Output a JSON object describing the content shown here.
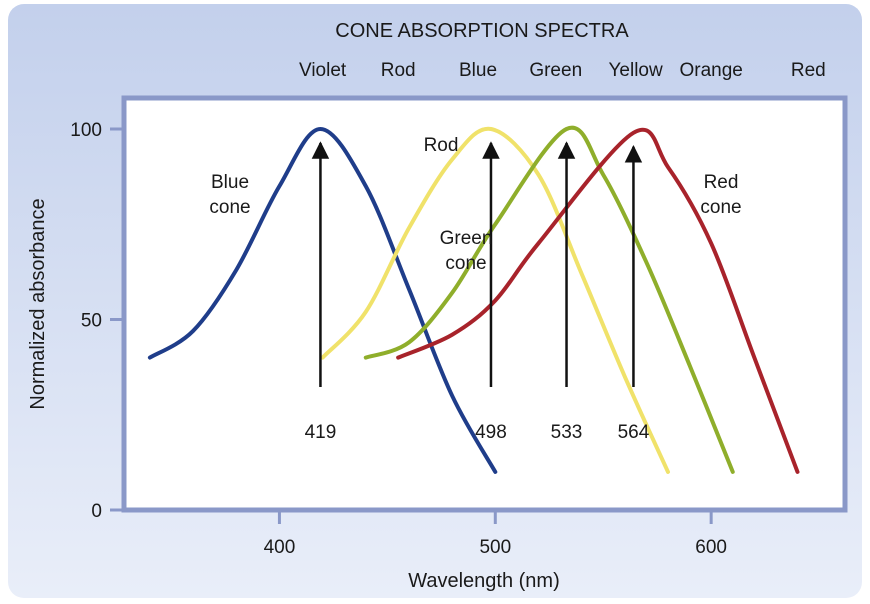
{
  "chart_data": {
    "type": "line",
    "title": "CONE ABSORPTION SPECTRA",
    "xlabel": "Wavelength (nm)",
    "ylabel": "Normalized absorbance",
    "xlim": [
      328,
      662
    ],
    "ylim": [
      0,
      100
    ],
    "x_ticks": [
      400,
      500,
      600
    ],
    "y_ticks": [
      0,
      50,
      100
    ],
    "color_bands": [
      {
        "label": "Violet",
        "x": 420
      },
      {
        "label": "Rod",
        "x": 455
      },
      {
        "label": "Blue",
        "x": 492
      },
      {
        "label": "Green",
        "x": 528
      },
      {
        "label": "Yellow",
        "x": 565
      },
      {
        "label": "Orange",
        "x": 600
      },
      {
        "label": "Red",
        "x": 645
      }
    ],
    "series": [
      {
        "name": "Blue cone",
        "color": "#1f3d8a",
        "peak": 419,
        "x": [
          340,
          360,
          380,
          400,
          419,
          440,
          460,
          480,
          500
        ],
        "y": [
          40,
          47,
          63,
          85,
          100,
          85,
          58,
          30,
          10
        ]
      },
      {
        "name": "Rod",
        "color": "#f0e26a",
        "peak": 498,
        "x": [
          420,
          440,
          460,
          480,
          498,
          520,
          540,
          560,
          580
        ],
        "y": [
          40,
          52,
          74,
          92,
          100,
          88,
          62,
          35,
          10
        ]
      },
      {
        "name": "Green cone",
        "color": "#8fae2b",
        "peak": 533,
        "x": [
          440,
          460,
          480,
          500,
          533,
          550,
          570,
          590,
          610
        ],
        "y": [
          40,
          44,
          57,
          75,
          100,
          88,
          65,
          38,
          10
        ]
      },
      {
        "name": "Red cone",
        "color": "#a8232b",
        "peak": 564,
        "x": [
          455,
          480,
          500,
          520,
          564,
          580,
          600,
          620,
          640
        ],
        "y": [
          40,
          46,
          55,
          70,
          99,
          90,
          70,
          40,
          10
        ]
      }
    ],
    "annotations": {
      "blue_cone": [
        "Blue",
        "cone"
      ],
      "rod": "Rod",
      "green_cone": [
        "Green",
        "cone"
      ],
      "red_cone": [
        "Red",
        "cone"
      ],
      "peaks": [
        "419",
        "498",
        "533",
        "564"
      ]
    },
    "colors": {
      "background_gradient_top": "#c3d0ec",
      "background_gradient_bottom": "#e9eef9",
      "plot_border": "#8a98c8",
      "arrow": "#111111"
    }
  }
}
